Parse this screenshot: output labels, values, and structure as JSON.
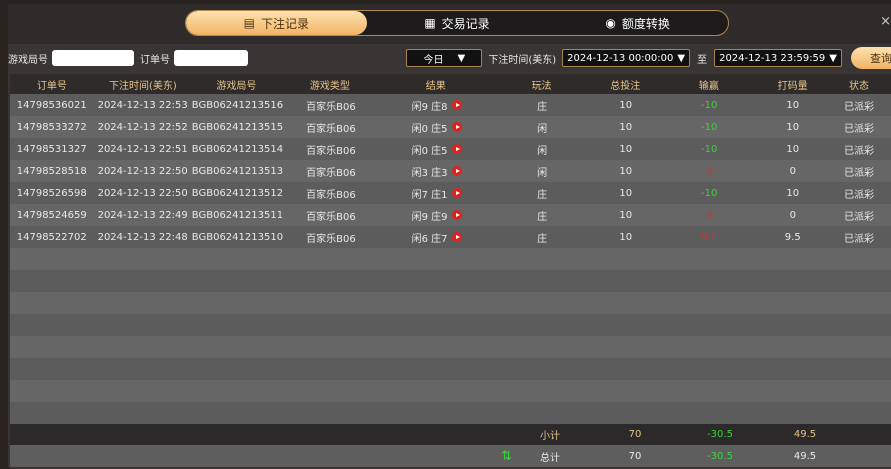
{
  "tabs": [
    {
      "label": "下注记录",
      "icon": "betting-slip-icon",
      "active": true
    },
    {
      "label": "交易记录",
      "icon": "clipboard-icon"
    },
    {
      "label": "额度转换",
      "icon": "coins-icon"
    }
  ],
  "close": "×",
  "filter": {
    "game_no_label": "游戏局号",
    "game_no_value": "",
    "order_label": "订单号",
    "order_value": "",
    "period": "今日",
    "time_label": "下注时间(美东)",
    "start": "2024-12-13 00:00:00",
    "to": "至",
    "end": "2024-12-13 23:59:59",
    "query": "查询"
  },
  "headers": [
    "订单号",
    "下注时间(美东)",
    "游戏局号",
    "游戏类型",
    "结果",
    "玩法",
    "总投注",
    "输赢",
    "打码量",
    "状态"
  ],
  "rows": [
    [
      "14798536021",
      "2024-12-13 22:53",
      "BGB06241213516",
      "百家乐B06",
      "闲9 庄8",
      "庄",
      "10",
      "-10",
      "10",
      "已派彩"
    ],
    [
      "14798533272",
      "2024-12-13 22:52",
      "BGB06241213515",
      "百家乐B06",
      "闲0 庄5",
      "闲",
      "10",
      "-10",
      "10",
      "已派彩"
    ],
    [
      "14798531327",
      "2024-12-13 22:51",
      "BGB06241213514",
      "百家乐B06",
      "闲0 庄5",
      "闲",
      "10",
      "-10",
      "10",
      "已派彩"
    ],
    [
      "14798528518",
      "2024-12-13 22:50",
      "BGB06241213513",
      "百家乐B06",
      "闲3 庄3",
      "闲",
      "10",
      "0",
      "0",
      "已派彩"
    ],
    [
      "14798526598",
      "2024-12-13 22:50",
      "BGB06241213512",
      "百家乐B06",
      "闲7 庄1",
      "庄",
      "10",
      "-10",
      "10",
      "已派彩"
    ],
    [
      "14798524659",
      "2024-12-13 22:49",
      "BGB06241213511",
      "百家乐B06",
      "闲9 庄9",
      "庄",
      "10",
      "0",
      "0",
      "已派彩"
    ],
    [
      "14798522702",
      "2024-12-13 22:48",
      "BGB06241213510",
      "百家乐B06",
      "闲6 庄7",
      "庄",
      "10",
      "9.5",
      "9.5",
      "已派彩"
    ]
  ],
  "subtotal": {
    "label": "小计",
    "bet": "70",
    "winloss": "-30.5",
    "valid": "49.5"
  },
  "total": {
    "label": "总计",
    "bet": "70",
    "winloss": "-30.5",
    "valid": "49.5"
  },
  "colors": {
    "accent": "#f2b363",
    "win": "#d43030",
    "loss": "#3ad33a"
  }
}
